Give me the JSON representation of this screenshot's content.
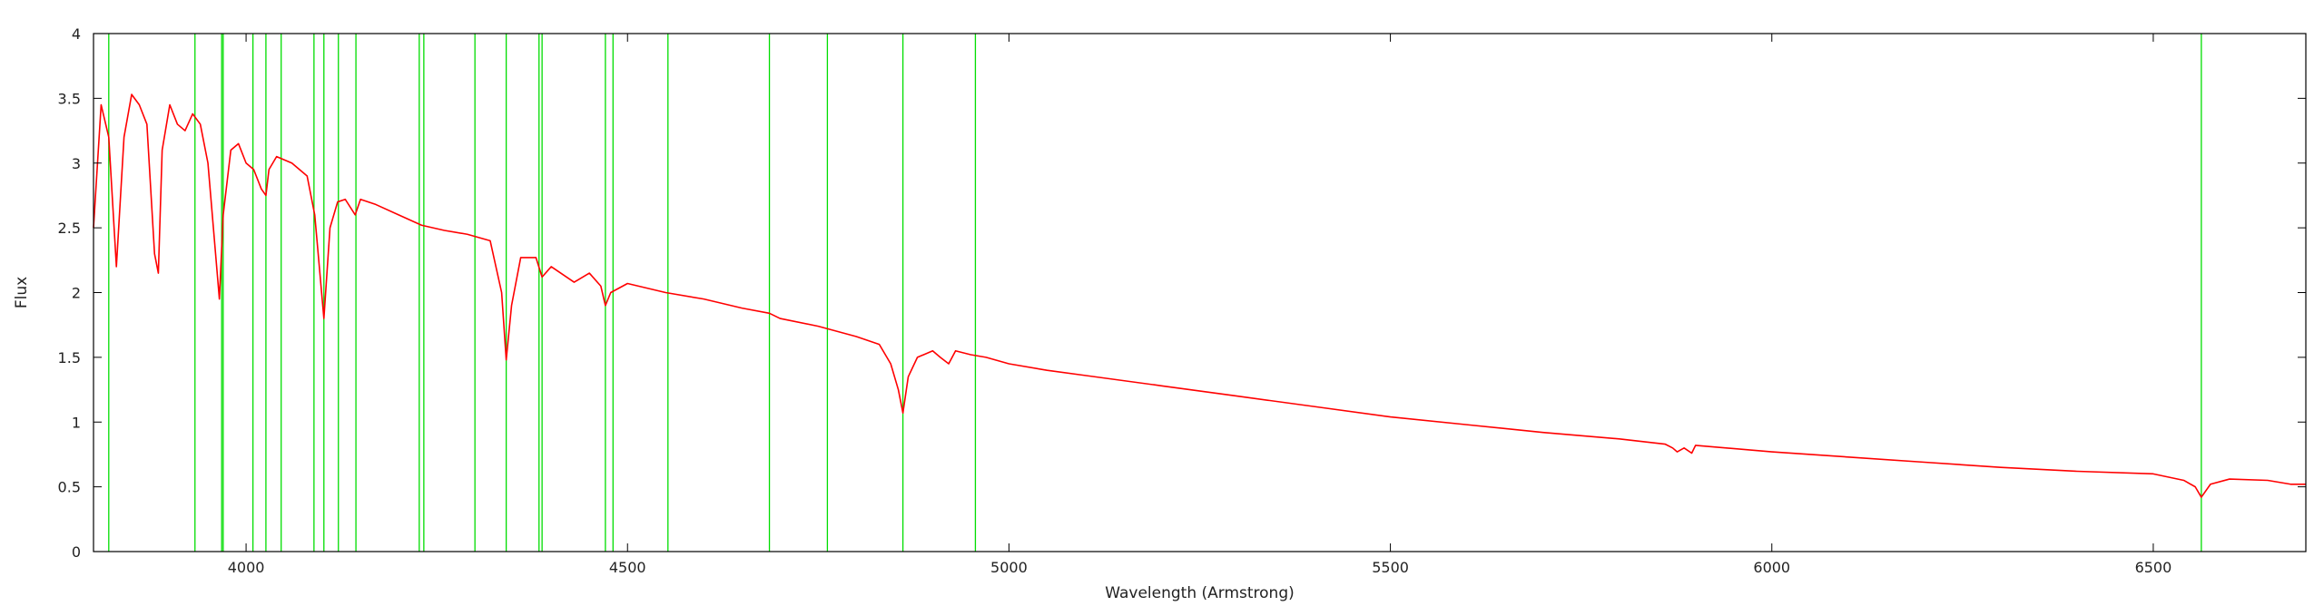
{
  "chart_data": {
    "type": "line",
    "title": "",
    "xlabel": "Wavelength (Armstrong)",
    "ylabel": "Flux",
    "xlim": [
      3800,
      6700
    ],
    "ylim": [
      0,
      4
    ],
    "x_ticks": [
      4000,
      4500,
      5000,
      5500,
      6000,
      6500
    ],
    "y_ticks": [
      0,
      0.5,
      1,
      1.5,
      2,
      2.5,
      3,
      3.5,
      4
    ],
    "x_tick_labels": [
      "4000",
      "4500",
      "5000",
      "5500",
      "6000",
      "6500"
    ],
    "y_tick_labels": [
      "0",
      "0.5",
      "1",
      "1.5",
      "2",
      "2.5",
      "3",
      "3.5",
      "4"
    ],
    "grid": false,
    "legend": "none",
    "colors": {
      "spectrum": "#ff0000",
      "lines": "#00dd00",
      "axes": "#000000"
    },
    "series": [
      {
        "style": "line",
        "x": [
          3800,
          3810,
          3820,
          3830,
          3840,
          3850,
          3860,
          3870,
          3880,
          3885,
          3890,
          3900,
          3910,
          3920,
          3930,
          3940,
          3950,
          3960,
          3965,
          3970,
          3980,
          3990,
          4000,
          4010,
          4020,
          4026,
          4030,
          4040,
          4060,
          4080,
          4090,
          4102,
          4110,
          4120,
          4130,
          4143,
          4150,
          4170,
          4200,
          4230,
          4260,
          4290,
          4320,
          4335,
          4341,
          4348,
          4360,
          4380,
          4388,
          4400,
          4430,
          4450,
          4465,
          4471,
          4478,
          4500,
          4550,
          4600,
          4650,
          4686,
          4700,
          4750,
          4800,
          4830,
          4845,
          4855,
          4861,
          4868,
          4880,
          4900,
          4910,
          4921,
          4930,
          4950,
          4970,
          5000,
          5050,
          5100,
          5200,
          5300,
          5400,
          5500,
          5600,
          5700,
          5800,
          5860,
          5870,
          5876,
          5885,
          5895,
          5900,
          6000,
          6100,
          6200,
          6300,
          6400,
          6500,
          6540,
          6555,
          6563,
          6575,
          6600,
          6650,
          6680,
          6700
        ],
        "y": [
          2.5,
          3.45,
          3.2,
          2.2,
          3.2,
          3.53,
          3.45,
          3.3,
          2.3,
          2.15,
          3.1,
          3.45,
          3.3,
          3.25,
          3.38,
          3.3,
          3.0,
          2.3,
          1.95,
          2.6,
          3.1,
          3.15,
          3.0,
          2.95,
          2.8,
          2.75,
          2.95,
          3.05,
          3.0,
          2.9,
          2.6,
          1.8,
          2.5,
          2.7,
          2.72,
          2.6,
          2.72,
          2.68,
          2.6,
          2.52,
          2.48,
          2.45,
          2.4,
          2.0,
          1.48,
          1.9,
          2.27,
          2.27,
          2.12,
          2.2,
          2.08,
          2.15,
          2.05,
          1.9,
          2.0,
          2.07,
          2.0,
          1.95,
          1.88,
          1.84,
          1.8,
          1.74,
          1.66,
          1.6,
          1.45,
          1.25,
          1.07,
          1.35,
          1.5,
          1.55,
          1.5,
          1.45,
          1.55,
          1.52,
          1.5,
          1.45,
          1.4,
          1.36,
          1.28,
          1.2,
          1.12,
          1.04,
          0.98,
          0.92,
          0.87,
          0.83,
          0.8,
          0.77,
          0.8,
          0.76,
          0.82,
          0.77,
          0.73,
          0.69,
          0.65,
          0.62,
          0.6,
          0.55,
          0.5,
          0.42,
          0.52,
          0.56,
          0.55,
          0.52,
          0.52
        ]
      }
    ],
    "reference_lines_x": [
      3820,
      3933,
      3968,
      3970,
      4009,
      4026,
      4046,
      4089,
      4102,
      4121,
      4144,
      4227,
      4233,
      4300,
      4341,
      4384,
      4388,
      4471,
      4481,
      4553,
      4686,
      4762,
      4861,
      4956,
      6563
    ]
  }
}
